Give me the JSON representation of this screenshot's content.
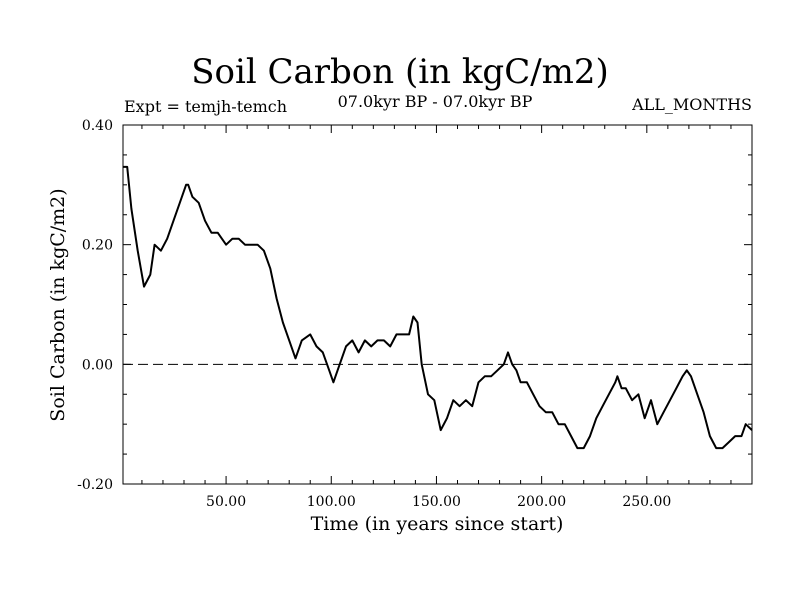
{
  "header": {
    "title": "Soil Carbon (in kgC/m2)",
    "expt": "Expt = temjh-temch",
    "period": "07.0kyr BP - 07.0kyr BP",
    "months": "ALL_MONTHS"
  },
  "chart_data": {
    "type": "line",
    "title": "Soil Carbon (in kgC/m2)",
    "xlabel": "Time (in years since start)",
    "ylabel": "Soil Carbon (in kgC/m2)",
    "xlim": [
      1,
      300
    ],
    "ylim": [
      -0.2,
      0.4
    ],
    "xticks": [
      50,
      100,
      150,
      200,
      250
    ],
    "xtick_labels": [
      "50.00",
      "100.00",
      "150.00",
      "200.00",
      "250.00"
    ],
    "yticks": [
      -0.2,
      0.0,
      0.2,
      0.4
    ],
    "ytick_labels": [
      "-0.20",
      "0.00",
      "0.20",
      "0.40"
    ],
    "reference_line": 0.0,
    "series": [
      {
        "color": "#000000",
        "x": [
          1,
          3,
          5,
          8,
          11,
          14,
          16,
          19,
          22,
          25,
          28,
          31,
          32,
          34,
          37,
          40,
          43,
          46,
          48,
          50,
          53,
          56,
          59,
          62,
          65,
          68,
          71,
          74,
          77,
          80,
          83,
          86,
          90,
          93,
          96,
          99,
          101,
          104,
          107,
          110,
          113,
          116,
          119,
          122,
          125,
          128,
          131,
          134,
          137,
          139,
          141,
          143,
          146,
          149,
          152,
          155,
          158,
          161,
          164,
          167,
          170,
          173,
          176,
          179,
          182,
          184,
          186,
          188,
          190,
          193,
          196,
          199,
          202,
          205,
          208,
          211,
          214,
          217,
          220,
          223,
          226,
          229,
          232,
          235,
          236,
          238,
          240,
          243,
          246,
          249,
          252,
          255,
          258,
          261,
          264,
          267,
          269,
          271,
          274,
          277,
          280,
          283,
          286,
          289,
          292,
          295,
          297,
          300
        ],
        "y": [
          0.33,
          0.33,
          0.26,
          0.19,
          0.13,
          0.15,
          0.2,
          0.19,
          0.21,
          0.24,
          0.27,
          0.3,
          0.3,
          0.28,
          0.27,
          0.24,
          0.22,
          0.22,
          0.21,
          0.2,
          0.21,
          0.21,
          0.2,
          0.2,
          0.2,
          0.19,
          0.16,
          0.11,
          0.07,
          0.04,
          0.01,
          0.04,
          0.05,
          0.03,
          0.02,
          -0.01,
          -0.03,
          0.0,
          0.03,
          0.04,
          0.02,
          0.04,
          0.03,
          0.04,
          0.04,
          0.03,
          0.05,
          0.05,
          0.05,
          0.08,
          0.07,
          0.0,
          -0.05,
          -0.06,
          -0.11,
          -0.09,
          -0.06,
          -0.07,
          -0.06,
          -0.07,
          -0.03,
          -0.02,
          -0.02,
          -0.01,
          0.0,
          0.02,
          0.0,
          -0.01,
          -0.03,
          -0.03,
          -0.05,
          -0.07,
          -0.08,
          -0.08,
          -0.1,
          -0.1,
          -0.12,
          -0.14,
          -0.14,
          -0.12,
          -0.09,
          -0.07,
          -0.05,
          -0.03,
          -0.02,
          -0.04,
          -0.04,
          -0.06,
          -0.05,
          -0.09,
          -0.06,
          -0.1,
          -0.08,
          -0.06,
          -0.04,
          -0.02,
          -0.01,
          -0.02,
          -0.05,
          -0.08,
          -0.12,
          -0.14,
          -0.14,
          -0.13,
          -0.12,
          -0.12,
          -0.1,
          -0.11
        ]
      }
    ]
  }
}
